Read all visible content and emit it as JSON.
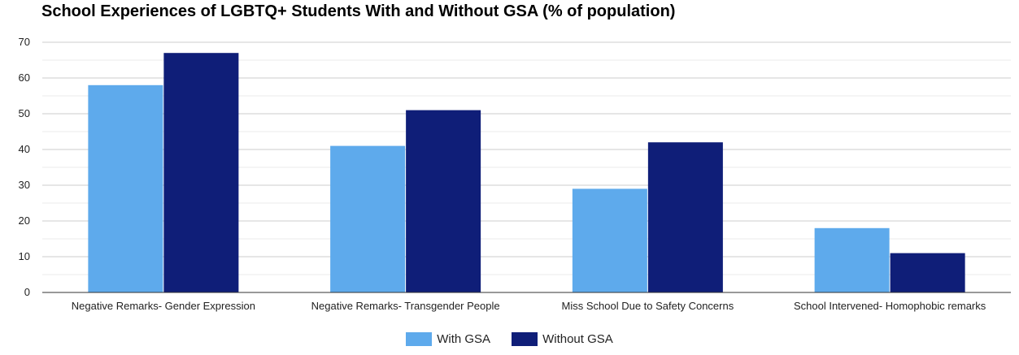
{
  "chart_data": {
    "type": "bar",
    "title": "School Experiences of LGBTQ+ Students With and Without GSA (% of population)",
    "categories": [
      "Negative Remarks- Gender Expression",
      "Negative Remarks- Transgender People",
      "Miss School Due to Safety Concerns",
      "School Intervened- Homophobic remarks"
    ],
    "series": [
      {
        "name": "With GSA",
        "values": [
          58,
          41,
          29,
          18
        ],
        "color": "#5eaaec"
      },
      {
        "name": "Without GSA",
        "values": [
          67,
          51,
          42,
          11
        ],
        "color": "#0f1e78"
      }
    ],
    "ylim": [
      0,
      70
    ],
    "yticks": [
      0,
      10,
      20,
      30,
      40,
      50,
      60,
      70
    ],
    "grid": true,
    "legend_position": "bottom"
  }
}
